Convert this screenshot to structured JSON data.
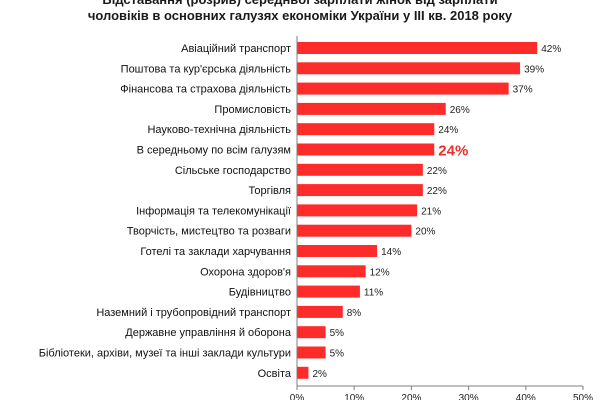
{
  "chart_data": {
    "type": "bar",
    "orientation": "horizontal",
    "title_lines": [
      "Відставання (розрив) середньої зарплати жінок від зарплати",
      "чоловіків в основних галузях економіки України у ІІІ кв. 2018 року"
    ],
    "categories": [
      "Авіаційний транспорт",
      "Поштова та кур'єрська діяльність",
      "Фінансова та страхова діяльність",
      "Промисловість",
      "Науково-технічна діяльність",
      "В середньому по всім галузям",
      "Сільське господарство",
      "Торгівля",
      "Інформація та телекомунікації",
      "Творчість, мистецтво та розваги",
      "Готелі та заклади харчування",
      "Охорона здоров'я",
      "Будівництво",
      "Наземний і трубопровідний транспорт",
      "Державне управління й оборона",
      "Бібліотеки, архіви, музеї та інші заклади культури",
      "Освіта"
    ],
    "values": [
      42,
      39,
      37,
      26,
      24,
      24,
      22,
      22,
      21,
      20,
      14,
      12,
      11,
      8,
      5,
      5,
      2
    ],
    "value_labels": [
      "42%",
      "39%",
      "37%",
      "26%",
      "24%",
      "24%",
      "22%",
      "22%",
      "21%",
      "20%",
      "14%",
      "12%",
      "11%",
      "8%",
      "5%",
      "5%",
      "2%"
    ],
    "highlight_index": 5,
    "xlim": [
      0,
      50
    ],
    "xticks": [
      0,
      10,
      20,
      30,
      40,
      50
    ],
    "xtick_labels": [
      "0%",
      "10%",
      "20%",
      "30%",
      "40%",
      "50%"
    ],
    "xlabel": "",
    "ylabel": "",
    "grid": false,
    "legend": "none",
    "colors": {
      "bar": "#fe2b2b",
      "highlight_text": "#e8302a",
      "axis": "#7f7f7f"
    }
  }
}
